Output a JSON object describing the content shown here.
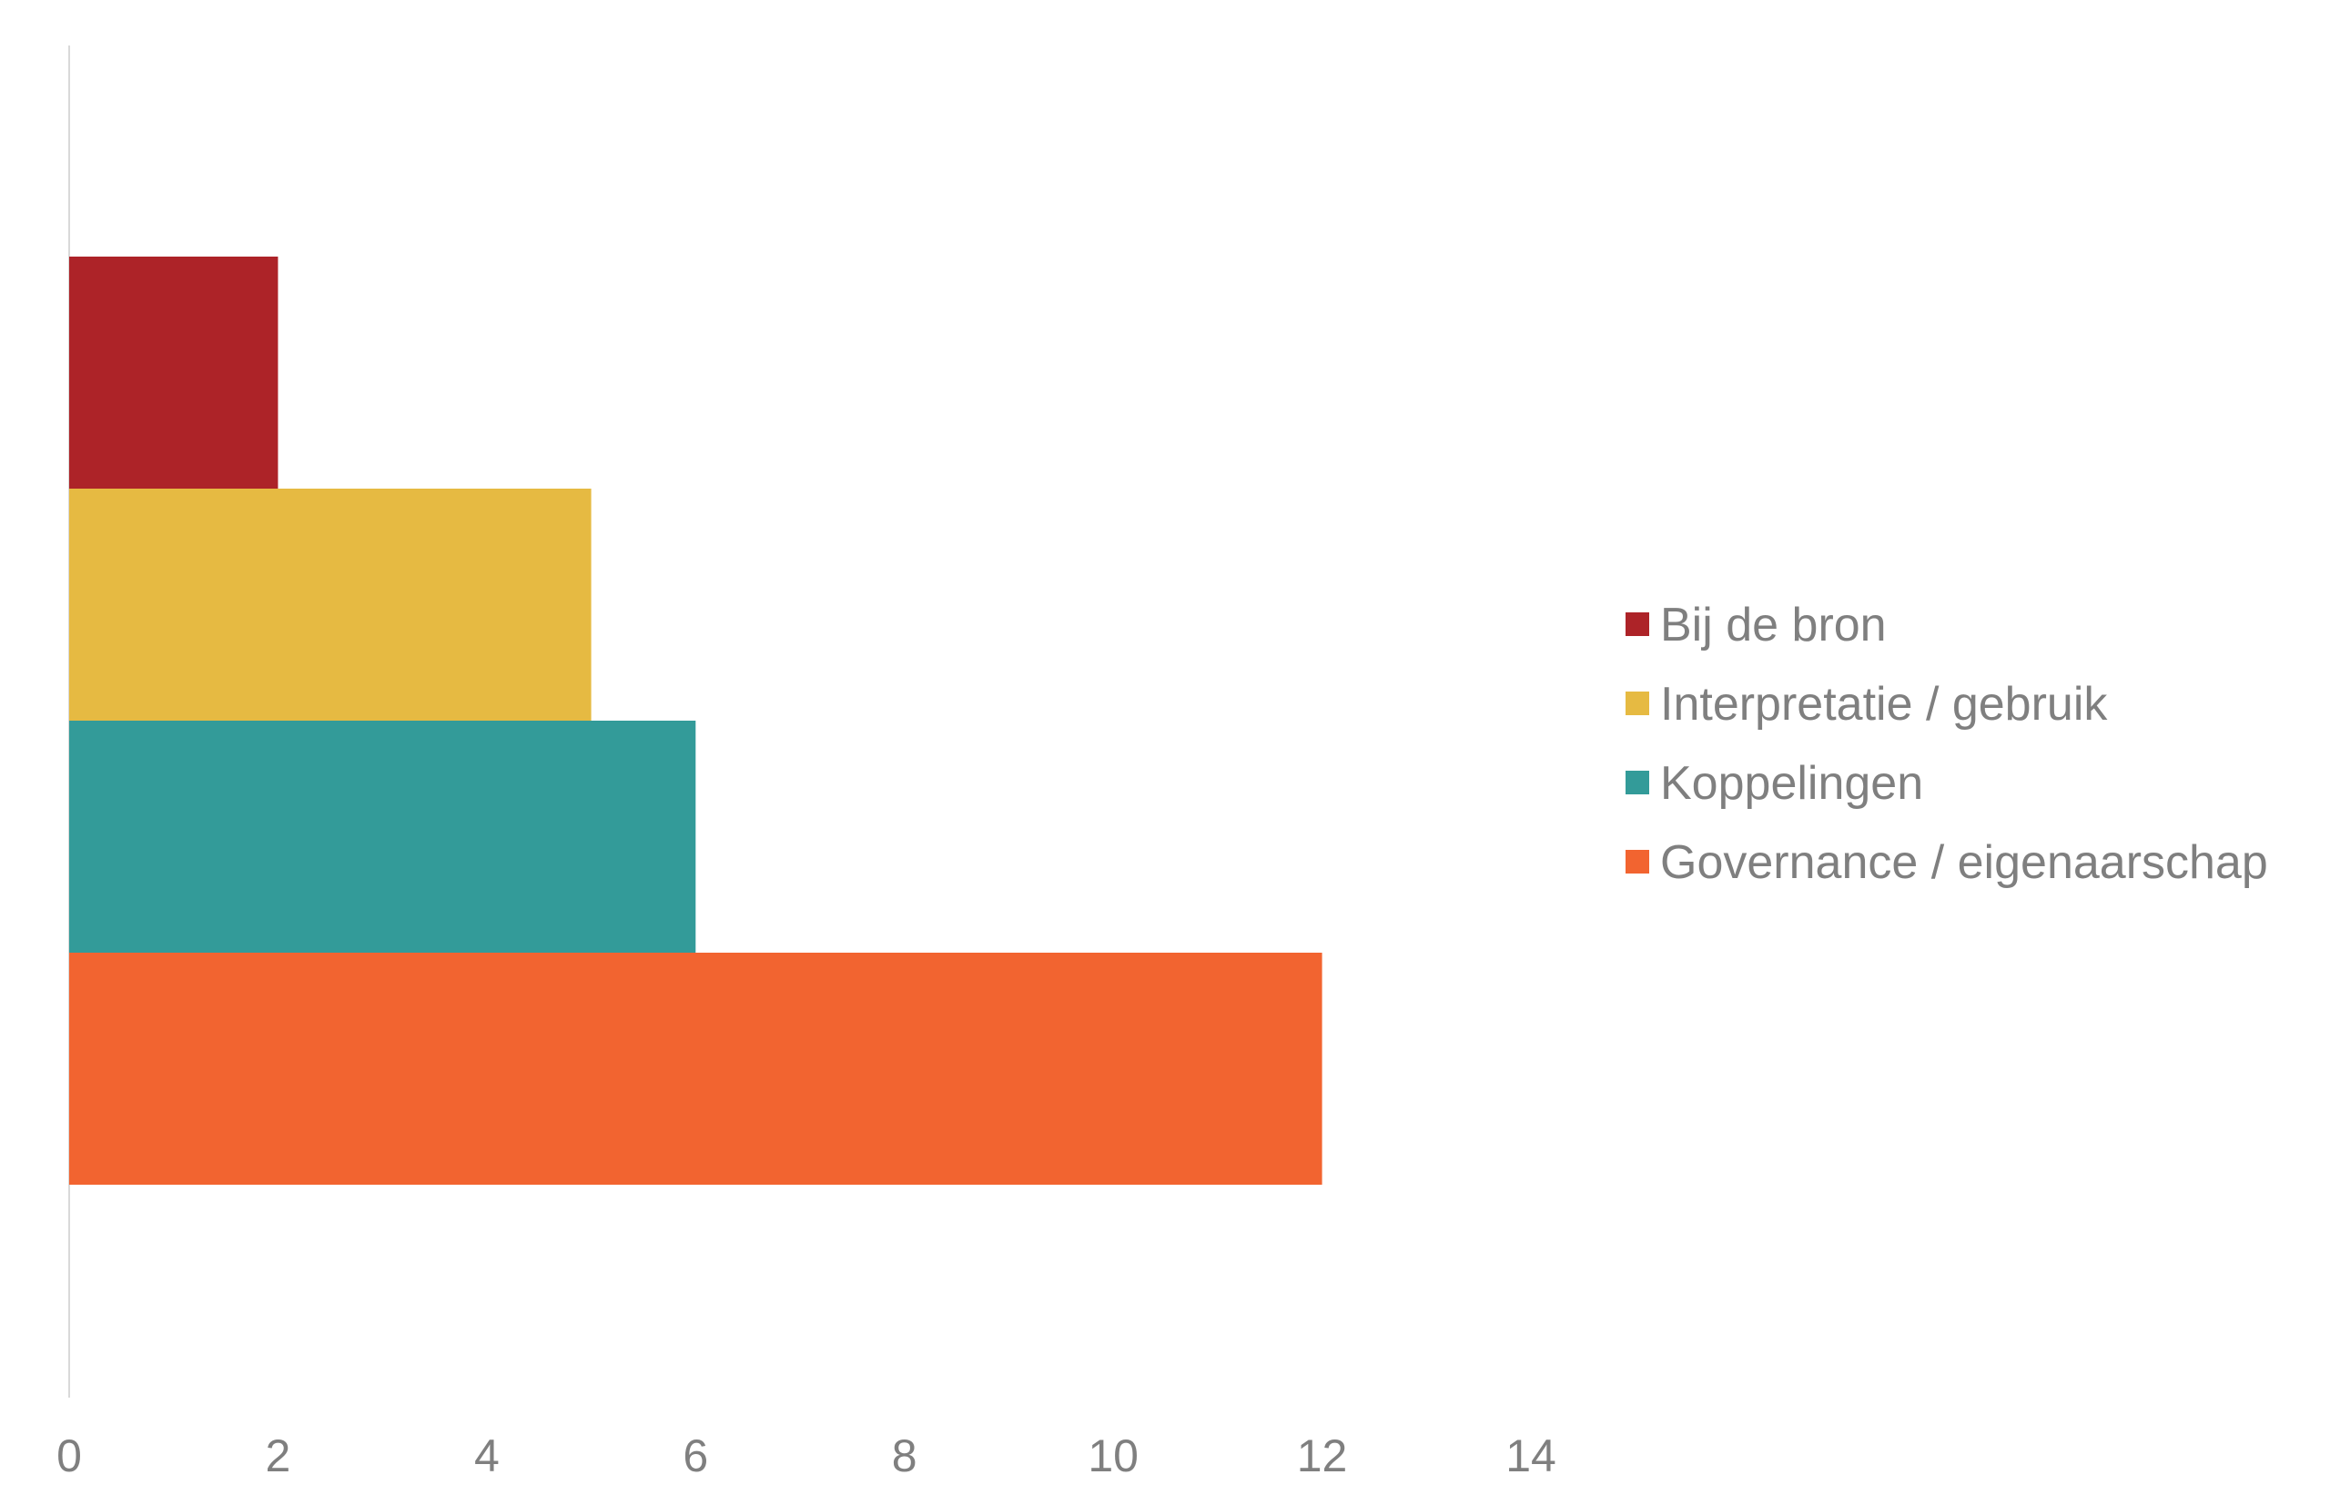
{
  "chart_data": {
    "type": "bar",
    "orientation": "horizontal",
    "stacking": "none",
    "categories": [
      ""
    ],
    "series": [
      {
        "name": "Bij de bron",
        "values": [
          2
        ],
        "color": "#AD2328"
      },
      {
        "name": "Interpretatie / gebruik",
        "values": [
          5
        ],
        "color": "#E6BA42"
      },
      {
        "name": "Koppelingen",
        "values": [
          6
        ],
        "color": "#339B99"
      },
      {
        "name": "Governance / eigenaarschap",
        "values": [
          12
        ],
        "color": "#F26430"
      }
    ],
    "x_ticks": [
      "0",
      "2",
      "4",
      "6",
      "8",
      "10",
      "12",
      "14"
    ],
    "xlim": [
      0,
      14
    ],
    "title": "",
    "xlabel": "",
    "ylabel": "",
    "grid": false,
    "legend_position": "right"
  }
}
